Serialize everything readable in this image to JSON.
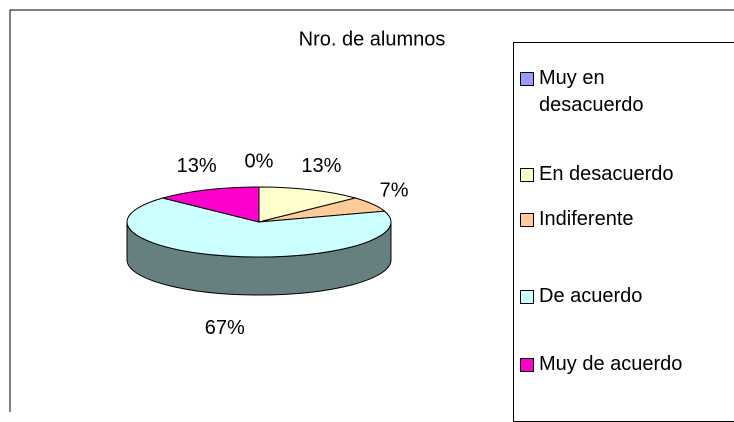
{
  "chart_data": {
    "type": "pie",
    "title": "Nro. de alumnos",
    "categories": [
      "Muy en desacuerdo",
      "En desacuerdo",
      "Indiferente",
      "De acuerdo",
      "Muy de acuerdo"
    ],
    "values": [
      0,
      13,
      7,
      67,
      13
    ],
    "value_labels": [
      "0%",
      "13%",
      "7%",
      "67%",
      "13%"
    ],
    "colors": [
      "#9999ff",
      "#ffffcc",
      "#ffcc99",
      "#ccffff",
      "#ff00cc"
    ],
    "legend": "right"
  }
}
